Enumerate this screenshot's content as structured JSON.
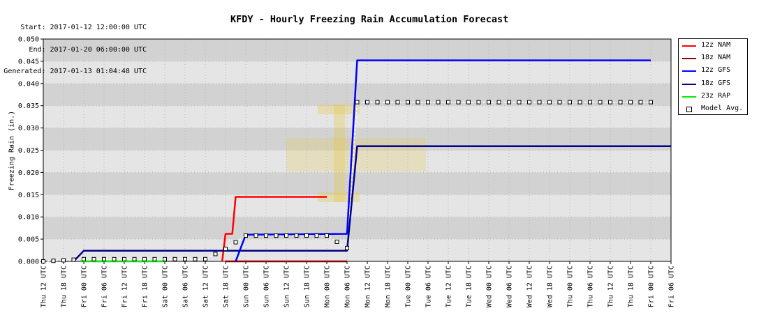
{
  "header": {
    "start": "Start: 2017-01-12 12:00:00 UTC",
    "end": "End: 2017-01-20 06:00:00 UTC",
    "generated": "Generated: 2017-01-13 01:04:48 UTC"
  },
  "chart_data": {
    "type": "line",
    "title": "KFDY - Hourly Freezing Rain Accumulation Forecast",
    "xlabel": "",
    "ylabel": "Freezing Rain (in.)",
    "ylim": [
      0,
      0.05
    ],
    "yticks": [
      "0.000",
      "0.005",
      "0.010",
      "0.015",
      "0.020",
      "0.025",
      "0.030",
      "0.035",
      "0.040",
      "0.045",
      "0.050"
    ],
    "xlim": [
      "Thu 12 UTC",
      "Fri 06 UTC"
    ],
    "x_tick_labels": [
      "Thu 12 UTC",
      "Thu 18 UTC",
      "Fri 00 UTC",
      "Fri 06 UTC",
      "Fri 12 UTC",
      "Fri 18 UTC",
      "Sat 00 UTC",
      "Sat 06 UTC",
      "Sat 12 UTC",
      "Sat 18 UTC",
      "Sun 00 UTC",
      "Sun 06 UTC",
      "Sun 12 UTC",
      "Sun 18 UTC",
      "Mon 00 UTC",
      "Mon 06 UTC",
      "Mon 12 UTC",
      "Mon 18 UTC",
      "Tue 00 UTC",
      "Tue 06 UTC",
      "Tue 12 UTC",
      "Tue 18 UTC",
      "Wed 00 UTC",
      "Wed 06 UTC",
      "Wed 12 UTC",
      "Wed 18 UTC",
      "Thu 00 UTC",
      "Thu 06 UTC",
      "Thu 12 UTC",
      "Thu 18 UTC",
      "Fri 00 UTC",
      "Fri 06 UTC"
    ],
    "grid": true,
    "legend_position": "right",
    "series": [
      {
        "name": "12z NAM",
        "color": "#ff0000",
        "points": [
          [
            "Sat 18 UTC -1h",
            0
          ],
          [
            "Sat 18 UTC",
            0.0062
          ],
          [
            "Sat 18 UTC +2h",
            0.0062
          ],
          [
            "Sat 18 UTC +3h",
            0.0145
          ],
          [
            "Mon 00 UTC",
            0.0145
          ]
        ]
      },
      {
        "name": "18z NAM",
        "color": "#8b0000",
        "points": [
          [
            "Sat 18 UTC",
            0
          ],
          [
            "Mon 06 UTC",
            0
          ]
        ]
      },
      {
        "name": "12z GFS",
        "color": "#0000ff",
        "points": [
          [
            "Sat 21 UTC",
            0
          ],
          [
            "Sun 00 UTC",
            0.006
          ],
          [
            "Mon 06 UTC",
            0.0062
          ],
          [
            "Mon 09 UTC",
            0.0452
          ],
          [
            "Fri 00 UTC",
            0.0452
          ]
        ]
      },
      {
        "name": "18z GFS",
        "color": "#00008b",
        "points": [
          [
            "Thu 21 UTC",
            0
          ],
          [
            "Fri 00 UTC",
            0.0024
          ],
          [
            "Mon 06 UTC",
            0.0024
          ],
          [
            "Mon 09 UTC",
            0.0259
          ],
          [
            "Fri 06 UTC",
            0.0259
          ]
        ]
      },
      {
        "name": "23z RAP",
        "color": "#00ee00",
        "points": [
          [
            "Thu 23 UTC",
            0
          ],
          [
            "Sat 00 UTC",
            0
          ]
        ]
      }
    ],
    "model_avg": {
      "name": "Model Avg.",
      "points": [
        [
          "Thu 12 UTC",
          0
        ],
        [
          "Fri 00 UTC",
          0.0005
        ],
        [
          "Sat 12 UTC",
          0.0005
        ],
        [
          "Sat 18 UTC",
          0.0028
        ],
        [
          "Sun 00 UTC",
          0.0058
        ],
        [
          "Mon 00 UTC",
          0.0058
        ],
        [
          "Mon 06 UTC",
          0.003
        ],
        [
          "Mon 09 UTC",
          0.0358
        ],
        [
          "Fri 00 UTC",
          0.0358
        ]
      ]
    }
  },
  "legend_markers": {
    "model_avg": "open-square-marker"
  }
}
